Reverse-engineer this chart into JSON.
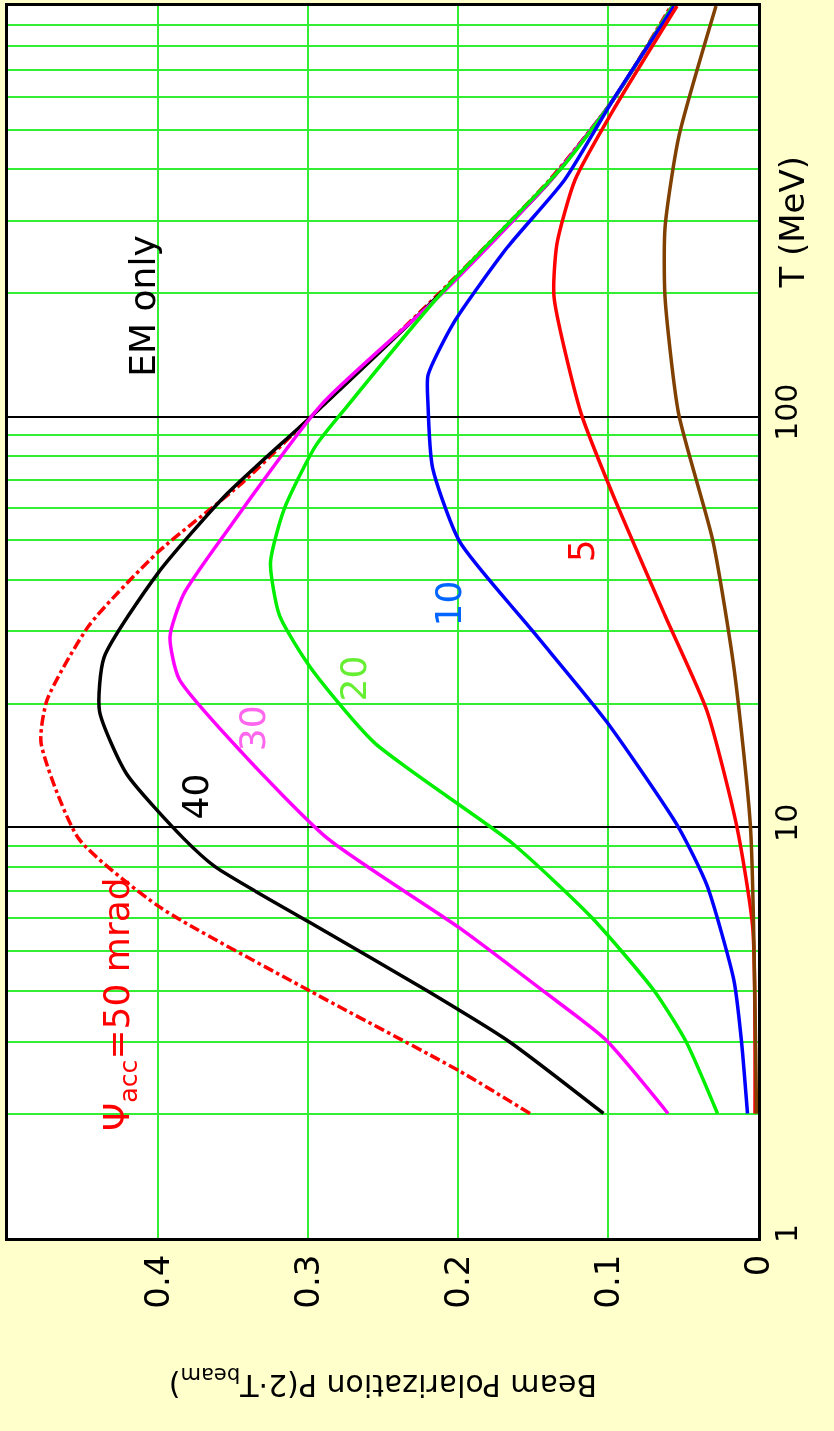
{
  "chart_data": {
    "type": "line",
    "xlabel": "Beam Polarization P(2·T$_{beam}$)",
    "ylabel": "T (MeV)",
    "log": "y",
    "xlim": [
      0.5,
      0
    ],
    "xticks": [
      0.4,
      0.3,
      0.2,
      0.1,
      0
    ],
    "ylim": [
      1,
      1000
    ],
    "yticks": [
      1,
      10,
      100
    ],
    "grid": true,
    "legend": false,
    "series": [
      {
        "color": "#ff0000",
        "line_style": "dashed",
        "values": [
          2.01,
          2.55,
          4.0,
          6.4,
          9.4,
          16.1,
          20.4,
          31,
          46.8,
          68.9,
          100,
          199,
          377,
          588,
          1000
        ],
        "x": [
          0.152,
          0.199,
          0.299,
          0.399,
          0.453,
          0.478,
          0.474,
          0.446,
          0.4,
          0.344,
          0.298,
          0.213,
          0.139,
          0.097,
          0.058
        ]
      },
      {
        "color": "#000000",
        "values": [
          2.01,
          3.01,
          3.99,
          5.87,
          8.02,
          9.4,
          13.5,
          19.2,
          25.9,
          41.6,
          64.9,
          100,
          199,
          377,
          588,
          1000
        ],
        "x": [
          0.103,
          0.166,
          0.22,
          0.299,
          0.362,
          0.383,
          0.421,
          0.439,
          0.436,
          0.4,
          0.354,
          0.298,
          0.212,
          0.138,
          0.097,
          0.057
        ]
      },
      {
        "color": "#ff00ff",
        "values": [
          2.01,
          3.05,
          3.99,
          5.69,
          9.4,
          15.2,
          23,
          29.1,
          36.9,
          52.7,
          107,
          199,
          377,
          588,
          1000
        ],
        "x": [
          0.06,
          0.102,
          0.143,
          0.199,
          0.287,
          0.344,
          0.386,
          0.392,
          0.383,
          0.354,
          0.291,
          0.211,
          0.138,
          0.097,
          0.057
        ]
      },
      {
        "color": "#00ee00",
        "values": [
          2.01,
          3.01,
          3.99,
          6.04,
          9.16,
          16.1,
          24.4,
          32.8,
          44.1,
          59.4,
          84.8,
          107,
          202,
          411,
          588,
          1000
        ],
        "x": [
          0.027,
          0.048,
          0.069,
          0.111,
          0.164,
          0.256,
          0.298,
          0.319,
          0.325,
          0.316,
          0.295,
          0.273,
          0.21,
          0.129,
          0.097,
          0.057
        ]
      },
      {
        "color": "#0000ff",
        "values": [
          2.01,
          3.01,
          4.23,
          7.22,
          10,
          18.1,
          30,
          49.7,
          75.3,
          107,
          126,
          169,
          256,
          377,
          588,
          1000
        ],
        "x": [
          0.007,
          0.011,
          0.016,
          0.034,
          0.053,
          0.101,
          0.15,
          0.199,
          0.217,
          0.22,
          0.22,
          0.203,
          0.168,
          0.129,
          0.097,
          0.056
        ]
      },
      {
        "color": "#ff0000",
        "values": [
          2.01,
          5.69,
          10,
          19.2,
          32.8,
          64.9,
          102,
          196,
          264,
          377,
          554,
          1000
        ],
        "x": [
          0.002,
          0.0035,
          0.014,
          0.034,
          0.062,
          0.097,
          0.118,
          0.136,
          0.134,
          0.122,
          0.097,
          0.054
        ]
      },
      {
        "color": "#804000",
        "values": [
          2.01,
          10,
          24.4,
          49.7,
          102,
          196,
          288,
          477,
          1000
        ],
        "x": [
          0.001,
          0.005,
          0.016,
          0.03,
          0.053,
          0.062,
          0.062,
          0.053,
          0.028
        ]
      }
    ],
    "annotations": [
      "Ψ$_{acc}$=50 mrad",
      "40",
      "30",
      "20",
      "10",
      "5",
      "EM only"
    ]
  }
}
